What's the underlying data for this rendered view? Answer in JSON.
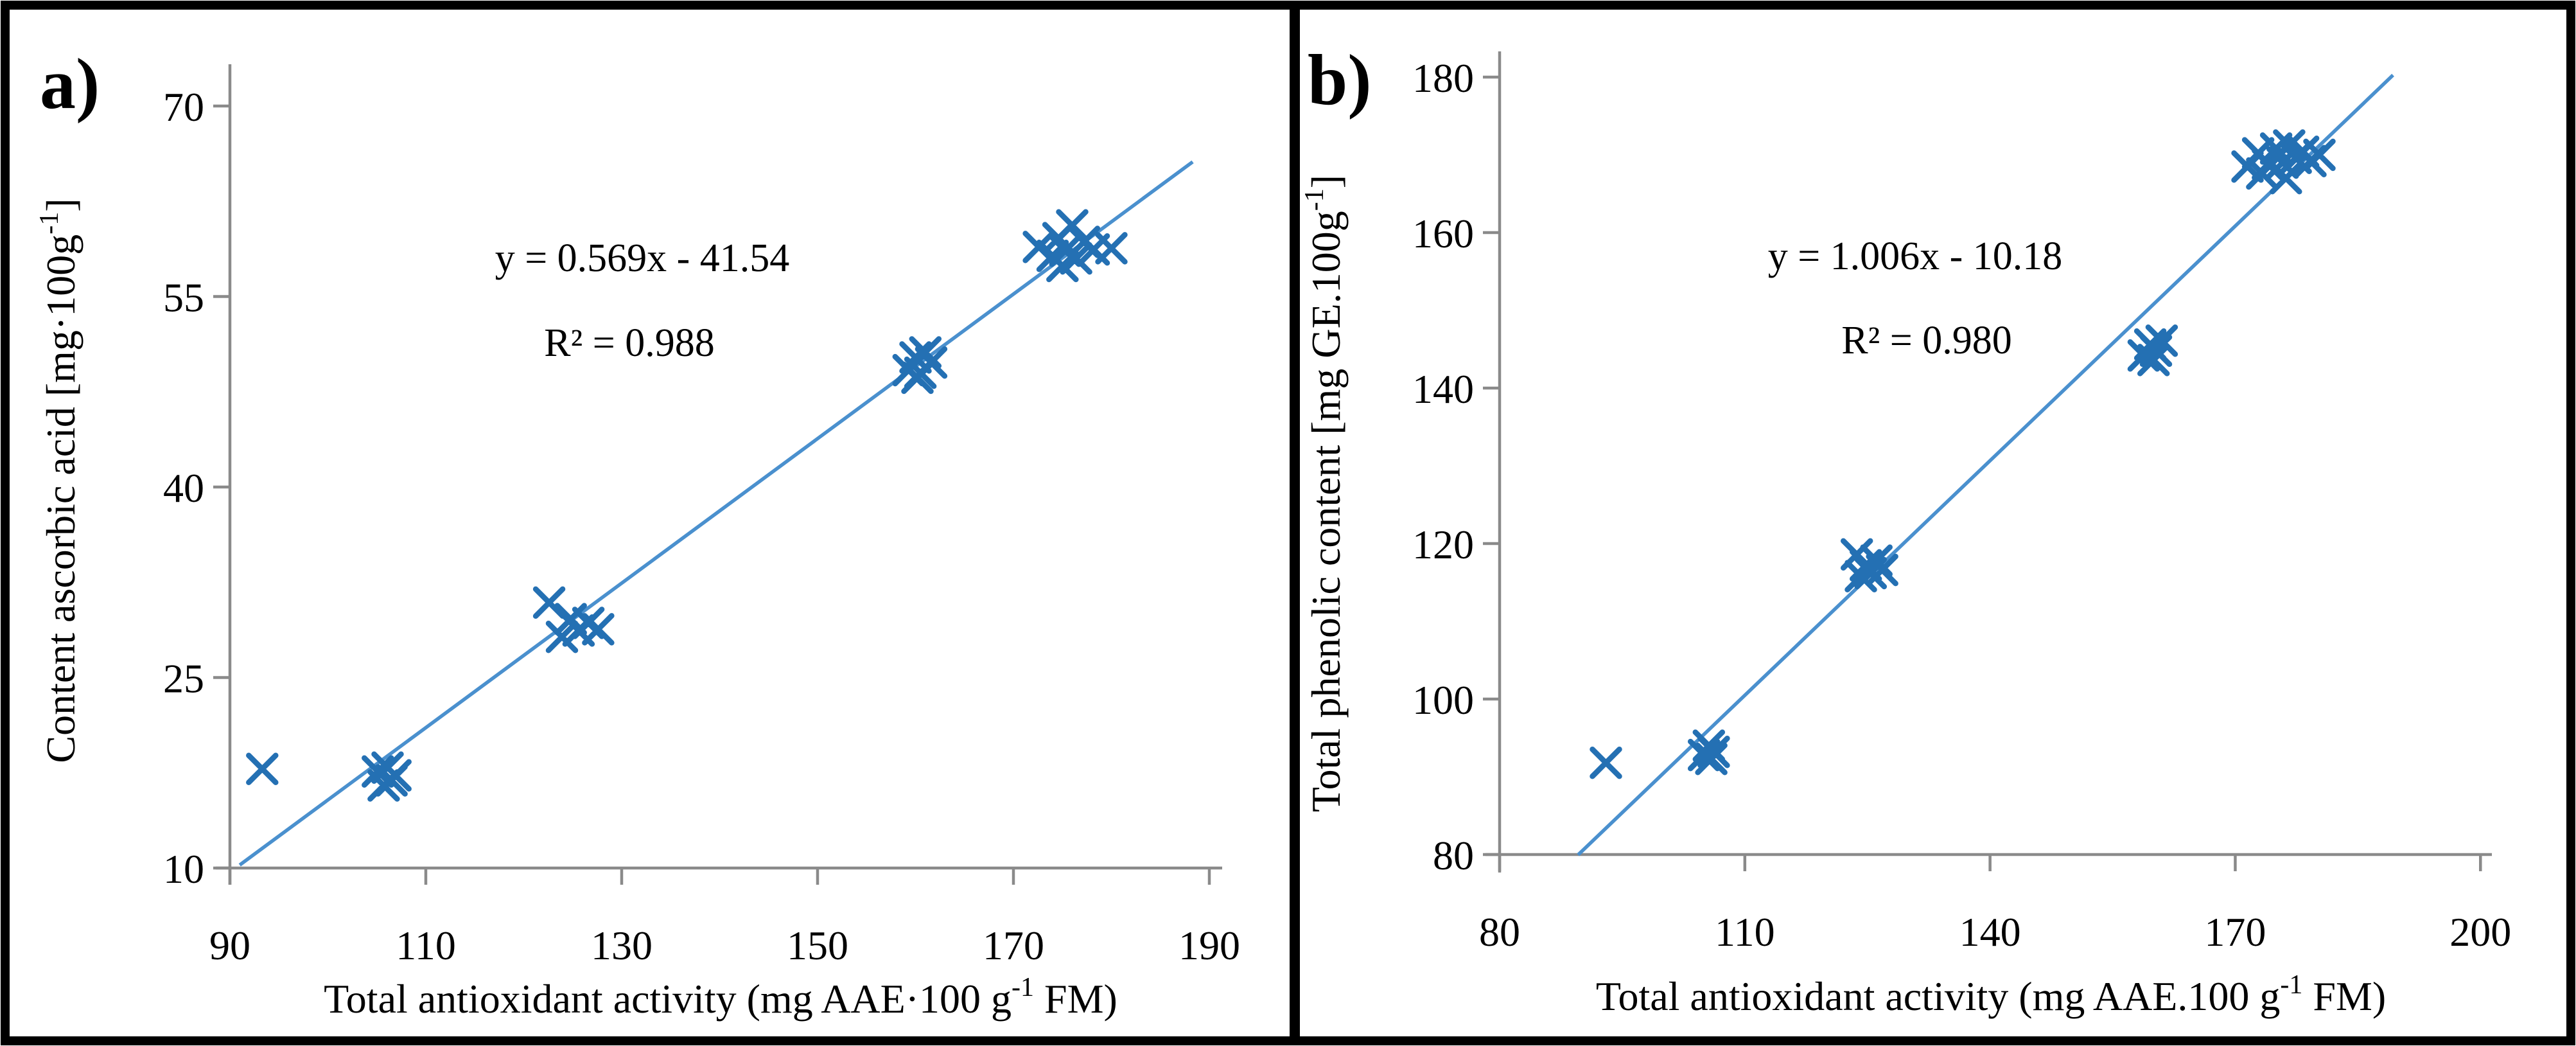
{
  "colors": {
    "marker": "#2470b3",
    "trendline": "#4a90ce",
    "axis": "#8a8a8a",
    "text": "#000000",
    "border": "#000000"
  },
  "chart_data": [
    {
      "type": "scatter",
      "panel_label": "a)",
      "equation": "y = 0.569x - 41.54",
      "r2": "R² = 0.988",
      "xlabel_main": "Total antioxidant activity (mg AAE·100 g",
      "xlabel_sup": "-1",
      "xlabel_end": " FM)",
      "ylabel_main": "Content ascorbic acid [mg·100g",
      "ylabel_sup": "-1",
      "ylabel_end": "]",
      "xlim": [
        90,
        190
      ],
      "ylim": [
        10,
        70
      ],
      "x_ticks": [
        90,
        110,
        130,
        150,
        170,
        190
      ],
      "y_ticks": [
        10,
        25,
        40,
        55,
        70
      ],
      "grid": false,
      "legend": "none",
      "trendline": {
        "slope": 0.569,
        "intercept": -41.54,
        "x_start": 91.0,
        "x_end": 188.3
      },
      "points": [
        [
          93.3,
          17.8
        ],
        [
          105.1,
          17.6
        ],
        [
          105.7,
          16.5
        ],
        [
          106.1,
          17.9
        ],
        [
          106.5,
          16.9
        ],
        [
          106.9,
          17.3
        ],
        [
          122.6,
          30.9
        ],
        [
          123.9,
          28.2
        ],
        [
          124.8,
          29.6
        ],
        [
          125.6,
          28.7
        ],
        [
          126.6,
          29.3
        ],
        [
          127.6,
          28.8
        ],
        [
          159.3,
          49.2
        ],
        [
          160.0,
          50.2
        ],
        [
          160.5,
          49.0
        ],
        [
          161.0,
          50.6
        ],
        [
          161.6,
          49.8
        ],
        [
          160.2,
          48.6
        ],
        [
          172.6,
          58.9
        ],
        [
          174.0,
          58.2
        ],
        [
          174.6,
          59.6
        ],
        [
          175.3,
          58.6
        ],
        [
          176.0,
          60.6
        ],
        [
          176.4,
          58.0
        ],
        [
          177.2,
          59.3
        ],
        [
          178.2,
          58.7
        ],
        [
          180.0,
          58.8
        ],
        [
          175.0,
          57.4
        ]
      ]
    },
    {
      "type": "scatter",
      "panel_label": "b)",
      "equation": "y = 1.006x - 10.18",
      "r2": "R² = 0.980",
      "xlabel_main": "Total antioxidant activity (mg AAE.100 g",
      "xlabel_sup": "-1",
      "xlabel_end": " FM)",
      "ylabel_main": "Total phenolic content [mg GE.100g",
      "ylabel_sup": "-1",
      "ylabel_end": "]",
      "xlim": [
        80,
        200
      ],
      "ylim": [
        80,
        180
      ],
      "x_ticks": [
        80,
        110,
        140,
        170,
        200
      ],
      "y_ticks": [
        80,
        100,
        120,
        140,
        160,
        180
      ],
      "grid": false,
      "legend": "none",
      "trendline": {
        "slope": 1.006,
        "intercept": -10.18,
        "x_start": 89.6,
        "x_end": 189.3
      },
      "points": [
        [
          93.0,
          91.8
        ],
        [
          105.0,
          92.8
        ],
        [
          105.6,
          94.0
        ],
        [
          106.2,
          93.2
        ],
        [
          105.9,
          92.3
        ],
        [
          123.7,
          118.6
        ],
        [
          124.2,
          115.8
        ],
        [
          124.8,
          117.2
        ],
        [
          125.4,
          116.2
        ],
        [
          126.1,
          117.8
        ],
        [
          126.8,
          116.6
        ],
        [
          158.8,
          144.2
        ],
        [
          159.6,
          145.6
        ],
        [
          160.3,
          144.8
        ],
        [
          161.0,
          146.1
        ],
        [
          160.0,
          143.6
        ],
        [
          171.5,
          168.5
        ],
        [
          172.8,
          170.2
        ],
        [
          174.0,
          168.8
        ],
        [
          175.0,
          170.8
        ],
        [
          175.8,
          169.0
        ],
        [
          176.6,
          171.2
        ],
        [
          177.4,
          169.6
        ],
        [
          178.3,
          170.4
        ],
        [
          179.2,
          169.2
        ],
        [
          180.3,
          170.0
        ],
        [
          176.2,
          167.0
        ],
        [
          173.3,
          167.6
        ]
      ]
    }
  ]
}
